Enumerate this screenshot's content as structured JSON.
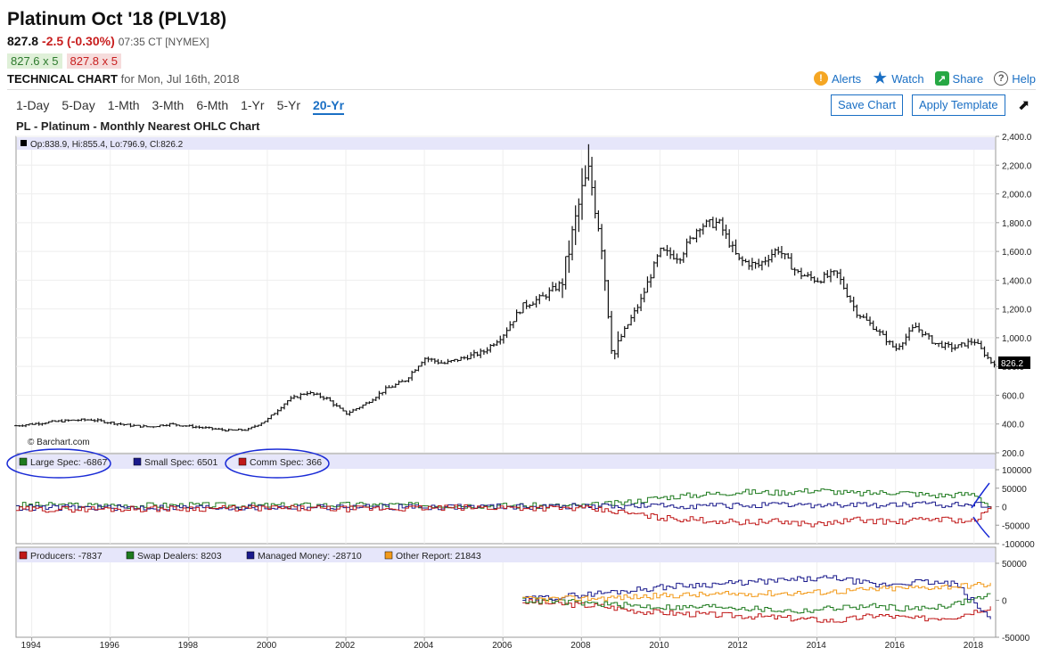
{
  "header": {
    "title": "Platinum Oct '18 (PLV18)",
    "price": "827.8",
    "change": "-2.5 (-0.30%)",
    "time": "07:35 CT [NYMEX]",
    "bid": "827.6 x 5",
    "ask": "827.8 x 5",
    "tech_label": "TECHNICAL CHART",
    "tech_date": "for Mon, Jul 16th, 2018"
  },
  "actions": {
    "alerts": "Alerts",
    "watch": "Watch",
    "share": "Share",
    "help": "Help"
  },
  "icons": {
    "alerts": "alert-icon",
    "watch": "star-icon",
    "share": "share-icon",
    "help": "help-icon",
    "expand": "expand-arrow-icon"
  },
  "ranges": [
    "1-Day",
    "5-Day",
    "1-Mth",
    "3-Mth",
    "6-Mth",
    "1-Yr",
    "5-Yr",
    "20-Yr"
  ],
  "selected_range": "20-Yr",
  "buttons": {
    "save": "Save Chart",
    "apply": "Apply Template"
  },
  "colors": {
    "accent": "#1a6fc4",
    "down": "#c81e1e",
    "green": "#1e7a1e",
    "blue": "#1a1a8c",
    "red": "#c01818",
    "orange": "#f29a1a",
    "panel_bg": "#e6e6fa"
  },
  "chart_data": [
    {
      "type": "ohlc",
      "title": "PL - Platinum - Monthly Nearest OHLC Chart",
      "info": "Op:838.9, Hi:855.4, Lo:796.9, Cl:826.2",
      "last_label": "826.2",
      "watermark": "© Barchart.com",
      "ylim": [
        200,
        2400
      ],
      "yticks": [
        "2,400.0",
        "2,200.0",
        "2,000.0",
        "1,800.0",
        "1,600.0",
        "1,400.0",
        "1,200.0",
        "1,000.0",
        "800.0",
        "600.0",
        "400.0",
        "200.0"
      ],
      "xlim": [
        1993.6,
        2018.55
      ],
      "xticks": [
        "1994",
        "1996",
        "1998",
        "2000",
        "2002",
        "2004",
        "2006",
        "2008",
        "2010",
        "2012",
        "2014",
        "2016",
        "2018"
      ],
      "x": [
        1993.5,
        1994.0,
        1994.5,
        1995.0,
        1995.5,
        1996.0,
        1996.5,
        1997.0,
        1997.5,
        1998.0,
        1998.5,
        1999.0,
        1999.5,
        2000.0,
        2000.5,
        2001.0,
        2001.5,
        2002.0,
        2002.5,
        2003.0,
        2003.5,
        2004.0,
        2004.5,
        2005.0,
        2005.5,
        2006.0,
        2006.5,
        2007.0,
        2007.5,
        2008.0,
        2008.2,
        2008.5,
        2008.8,
        2009.0,
        2009.5,
        2010.0,
        2010.5,
        2011.0,
        2011.5,
        2012.0,
        2012.5,
        2013.0,
        2013.5,
        2014.0,
        2014.5,
        2015.0,
        2015.5,
        2016.0,
        2016.5,
        2017.0,
        2017.5,
        2018.0,
        2018.45
      ],
      "close": [
        385,
        400,
        415,
        425,
        430,
        410,
        390,
        380,
        400,
        385,
        370,
        355,
        360,
        430,
        560,
        620,
        580,
        470,
        540,
        640,
        700,
        860,
        820,
        860,
        900,
        1020,
        1220,
        1280,
        1380,
        2000,
        2150,
        1700,
        850,
        1000,
        1250,
        1600,
        1560,
        1780,
        1800,
        1540,
        1500,
        1620,
        1450,
        1400,
        1450,
        1180,
        1060,
        920,
        1080,
        960,
        930,
        980,
        826
      ]
    },
    {
      "type": "line",
      "title": "COT - Spec",
      "ylim": [
        -100000,
        100000
      ],
      "yticks": [
        "100000",
        "50000",
        "0",
        "-50000",
        "-100000"
      ],
      "series": [
        {
          "name": "Large Spec: -6867",
          "color": "#1e7a1e",
          "x": [
            1993.6,
            1996,
            1998,
            2000,
            2002,
            2004,
            2006,
            2008,
            2009,
            2010,
            2012,
            2013,
            2014,
            2015,
            2016,
            2017,
            2018,
            2018.45
          ],
          "values": [
            5000,
            3000,
            4000,
            3000,
            5000,
            4000,
            3000,
            2000,
            10000,
            25000,
            40000,
            38000,
            45000,
            35000,
            40000,
            30000,
            35000,
            -6867
          ]
        },
        {
          "name": "Small Spec: 6501",
          "color": "#1a1a8c",
          "x": [
            1993.6,
            2000,
            2008,
            2012,
            2016,
            2018.45
          ],
          "values": [
            -3000,
            -2000,
            1000,
            3000,
            5000,
            6501
          ]
        },
        {
          "name": "Comm Spec: 366",
          "color": "#c01818",
          "x": [
            1993.6,
            1996,
            1998,
            2000,
            2002,
            2004,
            2006,
            2008,
            2009,
            2010,
            2012,
            2013,
            2014,
            2015,
            2016,
            2017,
            2018,
            2018.45
          ],
          "values": [
            -8000,
            -6000,
            -5000,
            -4000,
            -6000,
            -4000,
            -2000,
            -5000,
            -15000,
            -30000,
            -42000,
            -40000,
            -48000,
            -35000,
            -42000,
            -32000,
            -40000,
            366
          ]
        }
      ]
    },
    {
      "type": "line",
      "title": "COT - Disaggregated",
      "ylim": [
        -50000,
        50000
      ],
      "yticks": [
        "50000",
        "0",
        "-50000"
      ],
      "series": [
        {
          "name": "Producers: -7837",
          "color": "#c01818",
          "x": [
            2006.5,
            2007.5,
            2008.5,
            2009.5,
            2010.5,
            2011.5,
            2012.5,
            2013.5,
            2014.5,
            2015.5,
            2016.5,
            2017.5,
            2018.45
          ],
          "values": [
            -2000,
            -5000,
            -8000,
            -15000,
            -18000,
            -20000,
            -22000,
            -25000,
            -28000,
            -20000,
            -25000,
            -22000,
            -7837
          ]
        },
        {
          "name": "Swap Dealers: 8203",
          "color": "#1e7a1e",
          "x": [
            2006.5,
            2007.5,
            2008.5,
            2009.5,
            2010.5,
            2011.5,
            2012.5,
            2013.5,
            2014.5,
            2015.5,
            2016.5,
            2017.5,
            2018.45
          ],
          "values": [
            0,
            -2000,
            -5000,
            -8000,
            -10000,
            -8000,
            -12000,
            -15000,
            -10000,
            -8000,
            -12000,
            -5000,
            8203
          ]
        },
        {
          "name": "Managed Money: -28710",
          "color": "#1a1a8c",
          "x": [
            2006.5,
            2007.5,
            2008.5,
            2009.5,
            2010.5,
            2011.5,
            2012.5,
            2013.5,
            2014.5,
            2015.5,
            2016.5,
            2017.5,
            2018.45
          ],
          "values": [
            1000,
            5000,
            10000,
            15000,
            20000,
            22000,
            25000,
            28000,
            30000,
            20000,
            25000,
            22000,
            -28710
          ]
        },
        {
          "name": "Other Report: 21843",
          "color": "#f29a1a",
          "x": [
            2006.5,
            2007.5,
            2008.5,
            2009.5,
            2010.5,
            2011.5,
            2012.5,
            2013.5,
            2014.5,
            2015.5,
            2016.5,
            2017.5,
            2018.45
          ],
          "values": [
            1000,
            2000,
            3000,
            5000,
            7000,
            8000,
            9000,
            10000,
            12000,
            15000,
            17000,
            19000,
            21843
          ]
        }
      ]
    }
  ]
}
